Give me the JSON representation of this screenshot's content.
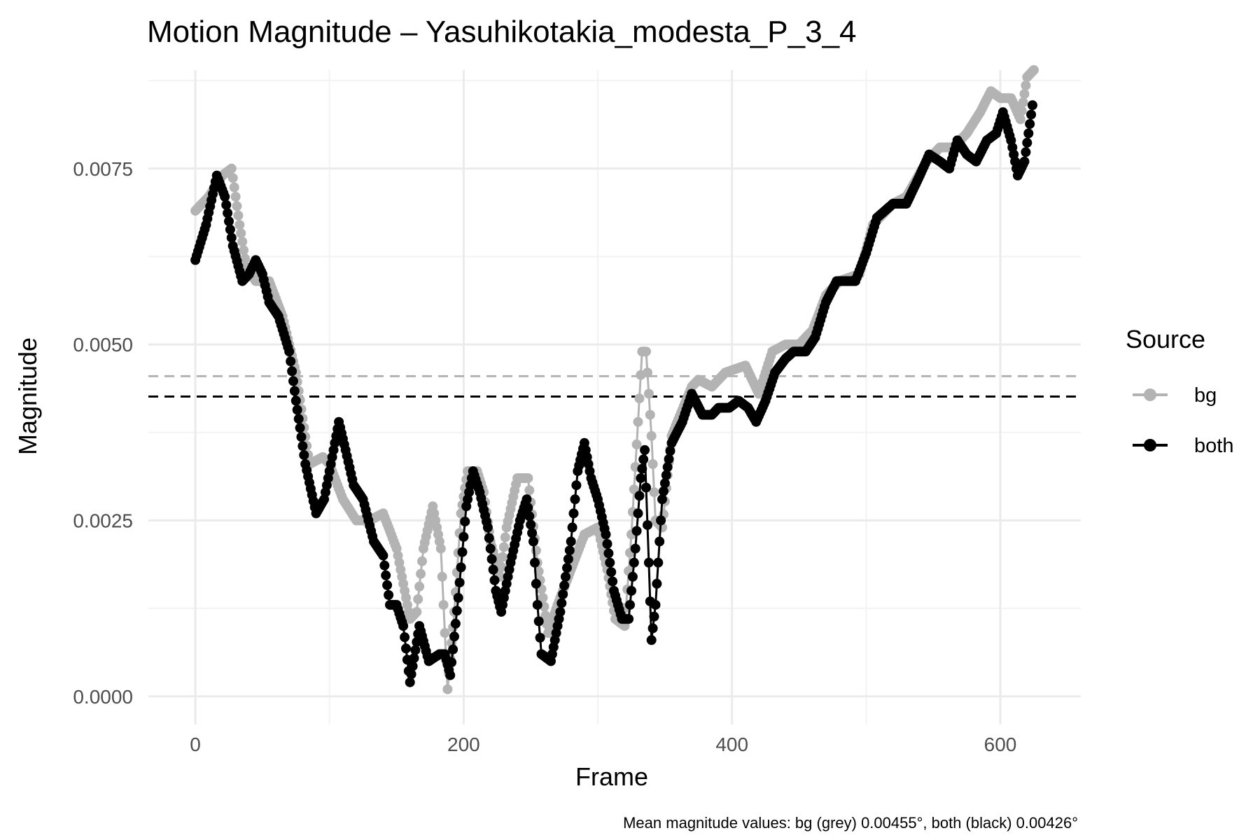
{
  "chart_data": {
    "type": "line",
    "title": "Motion Magnitude – Yasuhikotakia_modesta_P_3_4",
    "xlabel": "Frame",
    "ylabel": "Magnitude",
    "caption": "Mean magnitude values: bg (grey) 0.00455°, both (black) 0.00426°",
    "xlim": [
      -35,
      660
    ],
    "ylim": [
      -0.0004,
      0.0089
    ],
    "x_ticks": [
      0,
      200,
      400,
      600
    ],
    "x_tick_labels": [
      "0",
      "200",
      "400",
      "600"
    ],
    "y_ticks": [
      0.0,
      0.0025,
      0.005,
      0.0075
    ],
    "y_tick_labels": [
      "0.0000",
      "0.0025",
      "0.0050",
      "0.0075"
    ],
    "grid": true,
    "legend": {
      "title": "Source",
      "position": "right",
      "entries": [
        "bg",
        "both"
      ]
    },
    "colors": {
      "bg": "#b3b3b3",
      "both": "#000000"
    },
    "hlines": [
      {
        "series": "bg",
        "value": 0.00455,
        "style": "dashed"
      },
      {
        "series": "both",
        "value": 0.00426,
        "style": "dashed"
      }
    ],
    "series": [
      {
        "name": "bg",
        "points": [
          [
            0,
            0.0069
          ],
          [
            10,
            0.0071
          ],
          [
            20,
            0.0074
          ],
          [
            27,
            0.0075
          ],
          [
            33,
            0.0067
          ],
          [
            38,
            0.0061
          ],
          [
            45,
            0.0059
          ],
          [
            55,
            0.0059
          ],
          [
            65,
            0.0054
          ],
          [
            75,
            0.0046
          ],
          [
            85,
            0.0033
          ],
          [
            95,
            0.0034
          ],
          [
            100,
            0.0033
          ],
          [
            110,
            0.0028
          ],
          [
            120,
            0.0025
          ],
          [
            130,
            0.0025
          ],
          [
            140,
            0.0026
          ],
          [
            150,
            0.0021
          ],
          [
            160,
            0.0011
          ],
          [
            165,
            0.0012
          ],
          [
            170,
            0.0021
          ],
          [
            177,
            0.0027
          ],
          [
            183,
            0.0021
          ],
          [
            188,
            0.0001
          ],
          [
            193,
            0.0012
          ],
          [
            198,
            0.0026
          ],
          [
            203,
            0.0032
          ],
          [
            210,
            0.0032
          ],
          [
            215,
            0.0029
          ],
          [
            220,
            0.0022
          ],
          [
            227,
            0.0017
          ],
          [
            232,
            0.0024
          ],
          [
            240,
            0.0031
          ],
          [
            248,
            0.0031
          ],
          [
            255,
            0.0019
          ],
          [
            263,
            0.0009
          ],
          [
            270,
            0.0013
          ],
          [
            280,
            0.0018
          ],
          [
            290,
            0.0023
          ],
          [
            300,
            0.0024
          ],
          [
            307,
            0.0018
          ],
          [
            313,
            0.0011
          ],
          [
            320,
            0.001
          ],
          [
            325,
            0.0023
          ],
          [
            330,
            0.0039
          ],
          [
            333,
            0.0049
          ],
          [
            336,
            0.0049
          ],
          [
            340,
            0.0037
          ],
          [
            343,
            0.0025
          ],
          [
            348,
            0.0024
          ],
          [
            355,
            0.0037
          ],
          [
            370,
            0.0044
          ],
          [
            375,
            0.0045
          ],
          [
            385,
            0.0044
          ],
          [
            395,
            0.0046
          ],
          [
            410,
            0.0047
          ],
          [
            415,
            0.0045
          ],
          [
            420,
            0.0043
          ],
          [
            430,
            0.0049
          ],
          [
            440,
            0.005
          ],
          [
            450,
            0.005
          ],
          [
            460,
            0.0052
          ],
          [
            470,
            0.0057
          ],
          [
            480,
            0.0059
          ],
          [
            495,
            0.006
          ],
          [
            505,
            0.0067
          ],
          [
            520,
            0.007
          ],
          [
            530,
            0.0071
          ],
          [
            545,
            0.0076
          ],
          [
            555,
            0.0078
          ],
          [
            565,
            0.0078
          ],
          [
            575,
            0.008
          ],
          [
            585,
            0.0083
          ],
          [
            593,
            0.0086
          ],
          [
            600,
            0.0085
          ],
          [
            608,
            0.0085
          ],
          [
            615,
            0.0082
          ],
          [
            620,
            0.0088
          ],
          [
            625,
            0.0089
          ]
        ]
      },
      {
        "name": "both",
        "points": [
          [
            0,
            0.0062
          ],
          [
            8,
            0.0067
          ],
          [
            16,
            0.0074
          ],
          [
            22,
            0.0071
          ],
          [
            28,
            0.0064
          ],
          [
            35,
            0.0059
          ],
          [
            40,
            0.006
          ],
          [
            45,
            0.0062
          ],
          [
            50,
            0.006
          ],
          [
            55,
            0.0056
          ],
          [
            62,
            0.0054
          ],
          [
            70,
            0.0049
          ],
          [
            75,
            0.0042
          ],
          [
            82,
            0.0033
          ],
          [
            90,
            0.0026
          ],
          [
            96,
            0.0028
          ],
          [
            102,
            0.0034
          ],
          [
            107,
            0.0039
          ],
          [
            112,
            0.0035
          ],
          [
            118,
            0.003
          ],
          [
            125,
            0.0028
          ],
          [
            133,
            0.0022
          ],
          [
            140,
            0.002
          ],
          [
            145,
            0.0013
          ],
          [
            150,
            0.0013
          ],
          [
            155,
            0.001
          ],
          [
            160,
            0.0002
          ],
          [
            167,
            0.001
          ],
          [
            174,
            0.0005
          ],
          [
            182,
            0.0006
          ],
          [
            186,
            0.0006
          ],
          [
            190,
            0.0003
          ],
          [
            196,
            0.0014
          ],
          [
            202,
            0.0027
          ],
          [
            207,
            0.0032
          ],
          [
            212,
            0.0029
          ],
          [
            218,
            0.0024
          ],
          [
            224,
            0.0015
          ],
          [
            228,
            0.0012
          ],
          [
            235,
            0.0019
          ],
          [
            242,
            0.0025
          ],
          [
            247,
            0.0028
          ],
          [
            252,
            0.0022
          ],
          [
            255,
            0.0013
          ],
          [
            258,
            0.0006
          ],
          [
            265,
            0.0005
          ],
          [
            272,
            0.0012
          ],
          [
            280,
            0.0022
          ],
          [
            285,
            0.0032
          ],
          [
            290,
            0.0036
          ],
          [
            295,
            0.0031
          ],
          [
            300,
            0.0028
          ],
          [
            306,
            0.0023
          ],
          [
            312,
            0.0015
          ],
          [
            318,
            0.0011
          ],
          [
            323,
            0.0011
          ],
          [
            328,
            0.0021
          ],
          [
            332,
            0.0031
          ],
          [
            335,
            0.0035
          ],
          [
            338,
            0.0019
          ],
          [
            340,
            0.0008
          ],
          [
            343,
            0.0013
          ],
          [
            348,
            0.0028
          ],
          [
            355,
            0.0036
          ],
          [
            363,
            0.0039
          ],
          [
            370,
            0.0043
          ],
          [
            378,
            0.004
          ],
          [
            385,
            0.004
          ],
          [
            390,
            0.0041
          ],
          [
            398,
            0.0041
          ],
          [
            405,
            0.0042
          ],
          [
            412,
            0.0041
          ],
          [
            418,
            0.0039
          ],
          [
            425,
            0.0042
          ],
          [
            432,
            0.0046
          ],
          [
            440,
            0.0048
          ],
          [
            446,
            0.0049
          ],
          [
            455,
            0.0049
          ],
          [
            462,
            0.0051
          ],
          [
            470,
            0.0056
          ],
          [
            478,
            0.0059
          ],
          [
            485,
            0.0059
          ],
          [
            492,
            0.0059
          ],
          [
            500,
            0.0063
          ],
          [
            508,
            0.0068
          ],
          [
            520,
            0.007
          ],
          [
            530,
            0.007
          ],
          [
            540,
            0.0074
          ],
          [
            547,
            0.0077
          ],
          [
            555,
            0.0076
          ],
          [
            562,
            0.0075
          ],
          [
            568,
            0.0079
          ],
          [
            575,
            0.0077
          ],
          [
            582,
            0.0076
          ],
          [
            590,
            0.0079
          ],
          [
            597,
            0.008
          ],
          [
            602,
            0.0083
          ],
          [
            608,
            0.0079
          ],
          [
            613,
            0.0074
          ],
          [
            618,
            0.0076
          ],
          [
            624,
            0.0084
          ]
        ]
      }
    ]
  }
}
